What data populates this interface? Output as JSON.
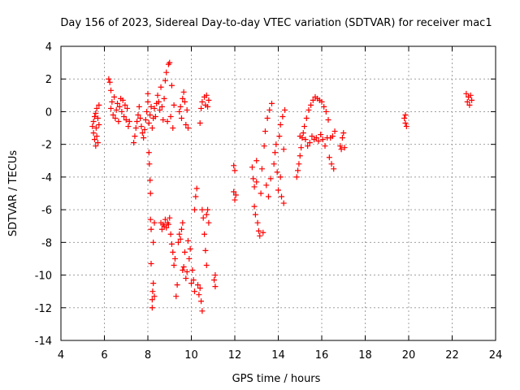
{
  "chart_data": {
    "type": "scatter",
    "title": "Day 156 of 2023, Sidereal Day-to-day VTEC variation (SDTVAR) for receiver mac1",
    "xlabel": "GPS time / hours",
    "ylabel": "SDTVAR / TECUs",
    "xlim": [
      4,
      24
    ],
    "ylim": [
      -14,
      4
    ],
    "xticks": [
      4,
      6,
      8,
      10,
      12,
      14,
      16,
      18,
      20,
      22,
      24
    ],
    "yticks": [
      -14,
      -12,
      -10,
      -8,
      -6,
      -4,
      -2,
      0,
      2,
      4
    ],
    "grid": true,
    "marker": "+",
    "series_color": "#ff0000",
    "series": [
      {
        "name": "SDTVAR",
        "points": [
          [
            5.45,
            -0.9
          ],
          [
            5.5,
            -1.3
          ],
          [
            5.5,
            -0.6
          ],
          [
            5.55,
            -1.7
          ],
          [
            5.55,
            -0.3
          ],
          [
            5.6,
            -2.1
          ],
          [
            5.6,
            -0.1
          ],
          [
            5.62,
            -1.0
          ],
          [
            5.65,
            0.2
          ],
          [
            5.65,
            -1.5
          ],
          [
            5.7,
            -0.4
          ],
          [
            5.7,
            -1.9
          ],
          [
            5.75,
            -0.8
          ],
          [
            5.75,
            0.4
          ],
          [
            6.2,
            2.0
          ],
          [
            6.25,
            1.8
          ],
          [
            6.3,
            1.3
          ],
          [
            6.3,
            0.2
          ],
          [
            6.35,
            0.6
          ],
          [
            6.4,
            -0.2
          ],
          [
            6.45,
            0.9
          ],
          [
            6.5,
            -0.4
          ],
          [
            6.55,
            0.1
          ],
          [
            6.6,
            0.5
          ],
          [
            6.65,
            -0.6
          ],
          [
            6.7,
            0.3
          ],
          [
            6.75,
            0.8
          ],
          [
            6.8,
            0.0
          ],
          [
            6.85,
            0.7
          ],
          [
            6.9,
            -0.3
          ],
          [
            6.95,
            0.4
          ],
          [
            7.0,
            -0.5
          ],
          [
            7.05,
            0.2
          ],
          [
            7.1,
            -0.9
          ],
          [
            7.15,
            -0.6
          ],
          [
            7.35,
            -1.9
          ],
          [
            7.4,
            -1.5
          ],
          [
            7.45,
            -1.0
          ],
          [
            7.5,
            -0.6
          ],
          [
            7.55,
            -0.2
          ],
          [
            7.6,
            0.3
          ],
          [
            7.65,
            -0.4
          ],
          [
            7.7,
            -0.9
          ],
          [
            7.75,
            -1.3
          ],
          [
            7.8,
            -1.6
          ],
          [
            7.85,
            -1.1
          ],
          [
            7.9,
            -0.5
          ],
          [
            7.95,
            0.0
          ],
          [
            8.0,
            0.6
          ],
          [
            8.0,
            1.1
          ],
          [
            8.05,
            -0.7
          ],
          [
            8.1,
            -0.2
          ],
          [
            8.15,
            0.3
          ],
          [
            8.2,
            -1.0
          ],
          [
            8.25,
            -0.4
          ],
          [
            8.3,
            0.2
          ],
          [
            8.35,
            -0.3
          ],
          [
            8.4,
            0.5
          ],
          [
            8.45,
            1.0
          ],
          [
            8.5,
            0.6
          ],
          [
            8.55,
            0.1
          ],
          [
            8.6,
            1.5
          ],
          [
            8.65,
            0.3
          ],
          [
            8.7,
            -0.5
          ],
          [
            8.75,
            0.8
          ],
          [
            8.8,
            1.9
          ],
          [
            8.85,
            2.4
          ],
          [
            8.9,
            -0.6
          ],
          [
            8.95,
            2.9
          ],
          [
            9.0,
            3.0
          ],
          [
            9.05,
            -0.3
          ],
          [
            9.1,
            1.6
          ],
          [
            9.15,
            -1.0
          ],
          [
            9.2,
            0.4
          ],
          [
            8.05,
            -2.5
          ],
          [
            8.07,
            -3.2
          ],
          [
            8.1,
            -4.2
          ],
          [
            8.12,
            -5.0
          ],
          [
            8.12,
            -6.6
          ],
          [
            8.15,
            -7.2
          ],
          [
            8.15,
            -9.3
          ],
          [
            8.2,
            -11.5
          ],
          [
            8.2,
            -12.0
          ],
          [
            8.22,
            -11.0
          ],
          [
            8.25,
            -10.5
          ],
          [
            8.25,
            -8.0
          ],
          [
            8.3,
            -11.3
          ],
          [
            8.3,
            -6.8
          ],
          [
            8.6,
            -6.8
          ],
          [
            8.65,
            -7.2
          ],
          [
            8.7,
            -6.9
          ],
          [
            8.75,
            -7.0
          ],
          [
            8.8,
            -6.6
          ],
          [
            8.85,
            -7.1
          ],
          [
            8.9,
            -6.8
          ],
          [
            8.95,
            -6.9
          ],
          [
            9.0,
            -6.5
          ],
          [
            9.05,
            -7.5
          ],
          [
            9.1,
            -8.1
          ],
          [
            9.15,
            -8.6
          ],
          [
            9.2,
            -9.4
          ],
          [
            9.25,
            -9.0
          ],
          [
            9.3,
            -11.3
          ],
          [
            9.35,
            -10.6
          ],
          [
            9.4,
            -8.0
          ],
          [
            9.45,
            -7.5
          ],
          [
            9.5,
            -7.8
          ],
          [
            9.55,
            -7.2
          ],
          [
            9.6,
            -6.8
          ],
          [
            9.6,
            -9.7
          ],
          [
            9.65,
            -9.5
          ],
          [
            9.7,
            -8.6
          ],
          [
            9.75,
            -10.2
          ],
          [
            9.8,
            -9.8
          ],
          [
            9.85,
            -7.9
          ],
          [
            9.9,
            -9.0
          ],
          [
            9.95,
            -8.4
          ],
          [
            10.0,
            -10.5
          ],
          [
            10.05,
            -9.7
          ],
          [
            10.1,
            -10.3
          ],
          [
            10.15,
            -11.0
          ],
          [
            10.15,
            -6.0
          ],
          [
            10.2,
            -5.2
          ],
          [
            10.25,
            -4.7
          ],
          [
            10.3,
            -10.6
          ],
          [
            10.35,
            -11.2
          ],
          [
            10.4,
            -10.8
          ],
          [
            10.45,
            -11.6
          ],
          [
            10.5,
            -12.2
          ],
          [
            10.5,
            -6.0
          ],
          [
            10.55,
            -6.5
          ],
          [
            10.6,
            -7.5
          ],
          [
            10.65,
            -8.5
          ],
          [
            10.7,
            -9.4
          ],
          [
            10.7,
            -6.3
          ],
          [
            10.75,
            -6.0
          ],
          [
            10.8,
            -6.8
          ],
          [
            9.45,
            0.0
          ],
          [
            9.5,
            0.3
          ],
          [
            9.55,
            -0.4
          ],
          [
            9.6,
            0.8
          ],
          [
            9.65,
            1.2
          ],
          [
            9.7,
            0.6
          ],
          [
            9.75,
            -0.8
          ],
          [
            9.8,
            0.1
          ],
          [
            9.85,
            -1.0
          ],
          [
            10.4,
            -0.7
          ],
          [
            10.45,
            0.2
          ],
          [
            10.5,
            0.6
          ],
          [
            10.6,
            0.9
          ],
          [
            10.65,
            0.4
          ],
          [
            10.7,
            1.0
          ],
          [
            10.75,
            0.3
          ],
          [
            10.8,
            0.7
          ],
          [
            11.05,
            -10.3
          ],
          [
            11.1,
            -10.7
          ],
          [
            11.1,
            -10.0
          ],
          [
            11.95,
            -3.3
          ],
          [
            11.95,
            -4.9
          ],
          [
            12.0,
            -3.6
          ],
          [
            12.0,
            -5.4
          ],
          [
            12.05,
            -5.1
          ],
          [
            12.8,
            -3.4
          ],
          [
            12.85,
            -4.1
          ],
          [
            12.9,
            -4.6
          ],
          [
            12.9,
            -5.8
          ],
          [
            12.95,
            -6.3
          ],
          [
            13.0,
            -3.0
          ],
          [
            13.0,
            -4.3
          ],
          [
            13.05,
            -6.8
          ],
          [
            13.1,
            -7.3
          ],
          [
            13.15,
            -7.6
          ],
          [
            13.2,
            -5.0
          ],
          [
            13.25,
            -3.5
          ],
          [
            13.3,
            -7.4
          ],
          [
            13.35,
            -2.1
          ],
          [
            13.4,
            -1.2
          ],
          [
            13.45,
            -4.5
          ],
          [
            13.5,
            -0.4
          ],
          [
            13.55,
            -5.2
          ],
          [
            13.6,
            0.1
          ],
          [
            13.65,
            -4.1
          ],
          [
            13.7,
            0.5
          ],
          [
            13.8,
            -3.2
          ],
          [
            13.85,
            -2.5
          ],
          [
            13.9,
            -2.0
          ],
          [
            13.95,
            -3.7
          ],
          [
            14.0,
            -4.8
          ],
          [
            14.05,
            -1.5
          ],
          [
            14.1,
            -4.0
          ],
          [
            14.1,
            -0.8
          ],
          [
            14.15,
            -5.2
          ],
          [
            14.2,
            -0.3
          ],
          [
            14.25,
            -2.3
          ],
          [
            14.25,
            -5.6
          ],
          [
            14.3,
            0.1
          ],
          [
            14.85,
            -4.0
          ],
          [
            14.9,
            -3.6
          ],
          [
            14.95,
            -3.2
          ],
          [
            15.0,
            -2.7
          ],
          [
            15.0,
            -1.5
          ],
          [
            15.05,
            -2.2
          ],
          [
            15.1,
            -1.6
          ],
          [
            15.15,
            -1.3
          ],
          [
            15.2,
            -0.9
          ],
          [
            15.25,
            -1.7
          ],
          [
            15.3,
            -0.4
          ],
          [
            15.35,
            -2.1
          ],
          [
            15.4,
            0.1
          ],
          [
            15.45,
            -1.9
          ],
          [
            15.5,
            0.4
          ],
          [
            15.55,
            -1.5
          ],
          [
            15.6,
            0.7
          ],
          [
            15.65,
            -1.7
          ],
          [
            15.7,
            0.9
          ],
          [
            15.75,
            -1.6
          ],
          [
            15.8,
            0.8
          ],
          [
            15.85,
            -1.8
          ],
          [
            15.9,
            0.7
          ],
          [
            15.95,
            -1.4
          ],
          [
            16.0,
            0.6
          ],
          [
            16.05,
            -1.7
          ],
          [
            16.1,
            0.3
          ],
          [
            16.15,
            -2.1
          ],
          [
            16.2,
            0.0
          ],
          [
            16.25,
            -1.6
          ],
          [
            16.3,
            -0.5
          ],
          [
            16.35,
            -2.8
          ],
          [
            16.4,
            -1.6
          ],
          [
            16.45,
            -3.2
          ],
          [
            16.5,
            -1.5
          ],
          [
            16.55,
            -3.5
          ],
          [
            16.6,
            -1.2
          ],
          [
            16.85,
            -2.1
          ],
          [
            16.9,
            -2.3
          ],
          [
            16.95,
            -1.6
          ],
          [
            17.0,
            -1.3
          ],
          [
            17.05,
            -2.2
          ],
          [
            19.8,
            -0.4
          ],
          [
            19.85,
            -0.7
          ],
          [
            19.85,
            -0.2
          ],
          [
            19.9,
            -0.9
          ],
          [
            22.65,
            1.1
          ],
          [
            22.7,
            0.6
          ],
          [
            22.75,
            0.9
          ],
          [
            22.8,
            0.4
          ],
          [
            22.85,
            1.0
          ],
          [
            22.9,
            0.7
          ]
        ]
      }
    ]
  }
}
